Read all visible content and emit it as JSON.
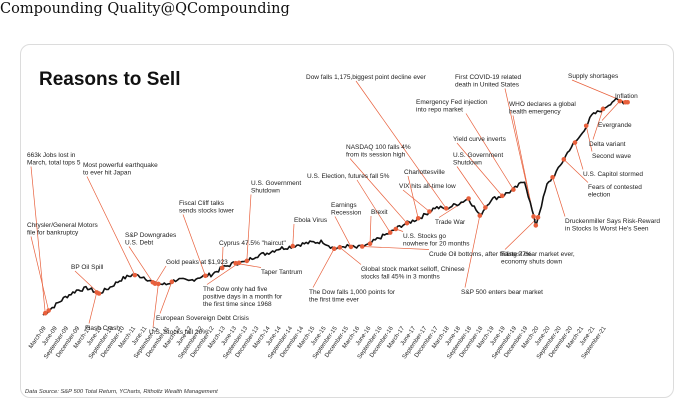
{
  "header": {
    "title": "Compounding Quality@QCompounding"
  },
  "chart_data": {
    "type": "line",
    "title": "Reasons to Sell",
    "source": "Data Source: S&P 500 Total Return, YCharts, Ritholtz Wealth Management",
    "line_color": "#111111",
    "marker_color": "#e8603c",
    "x_ticks": [
      "March-09",
      "June-09",
      "September-09",
      "December-09",
      "March-10",
      "June-10",
      "September-10",
      "December-10",
      "March-11",
      "June-11",
      "September-11",
      "December-11",
      "March-12",
      "June-12",
      "September-12",
      "December-12",
      "March-13",
      "June-13",
      "September-13",
      "December-13",
      "March-14",
      "June-14",
      "September-14",
      "December-14",
      "March-15",
      "June-15",
      "September-15",
      "December-15",
      "March-16",
      "June-16",
      "September-16",
      "December-16",
      "March-17",
      "June-17",
      "September-17",
      "December-17",
      "March-18",
      "June-18",
      "September-18",
      "December-18",
      "March-19",
      "June-19",
      "September-19",
      "December-19",
      "March-20",
      "June-20",
      "September-20",
      "December-20",
      "March-21",
      "June-21",
      "September-21"
    ],
    "series": [
      {
        "points": [
          [
            0,
            100
          ],
          [
            1,
            120
          ],
          [
            2,
            140
          ],
          [
            3,
            155
          ],
          [
            4,
            160
          ],
          [
            5,
            148
          ],
          [
            6,
            162
          ],
          [
            7,
            180
          ],
          [
            8,
            190
          ],
          [
            9,
            185
          ],
          [
            10,
            170
          ],
          [
            11,
            168
          ],
          [
            12,
            180
          ],
          [
            13,
            175
          ],
          [
            14,
            185
          ],
          [
            15,
            190
          ],
          [
            16,
            205
          ],
          [
            17,
            215
          ],
          [
            18,
            218
          ],
          [
            19,
            232
          ],
          [
            20,
            238
          ],
          [
            21,
            248
          ],
          [
            22,
            252
          ],
          [
            23,
            258
          ],
          [
            24,
            262
          ],
          [
            25,
            264
          ],
          [
            26,
            248
          ],
          [
            27,
            254
          ],
          [
            28,
            250
          ],
          [
            29,
            256
          ],
          [
            30,
            272
          ],
          [
            31,
            284
          ],
          [
            32,
            300
          ],
          [
            33,
            310
          ],
          [
            34,
            322
          ],
          [
            35,
            340
          ],
          [
            36,
            338
          ],
          [
            37,
            348
          ],
          [
            38,
            360
          ],
          [
            39,
            322
          ],
          [
            40,
            358
          ],
          [
            41,
            366
          ],
          [
            42,
            380
          ],
          [
            43,
            400
          ],
          [
            44,
            300
          ],
          [
            45,
            390
          ],
          [
            46,
            425
          ],
          [
            47,
            470
          ],
          [
            48,
            500
          ],
          [
            49,
            545
          ],
          [
            50,
            560
          ],
          [
            51,
            580
          ],
          [
            52,
            575
          ]
        ]
      }
    ],
    "annotations": [
      {
        "text": [
          "663k Jobs lost in",
          "March, total tops 5"
        ],
        "x": 0.2
      },
      {
        "text": [
          "Chrysler/General Motors",
          "file for bankruptcy"
        ],
        "x": 0.5
      },
      {
        "text": [
          "Most powerful earthquake",
          "to ever hit Japan"
        ],
        "x": 8.2
      },
      {
        "text": [
          "BP Oil Spill"
        ],
        "x": 5.0
      },
      {
        "text": [
          "Flash Crash"
        ],
        "x": 4.8
      },
      {
        "text": [
          "S&P Downgrades",
          "U.S. Debt"
        ],
        "x": 9.8
      },
      {
        "text": [
          "Fiscal Cliff talks",
          "sends stocks lower"
        ],
        "x": 14.5
      },
      {
        "text": [
          "Gold peaks at $1,923"
        ],
        "x": 10.0
      },
      {
        "text": [
          "U.S. Stocks fall 20%"
        ],
        "x": 10.3
      },
      {
        "text": [
          "European Sovereign Debt Crisis"
        ],
        "x": 11.5
      },
      {
        "text": [
          "Cyprus 47.5% \"haircut\""
        ],
        "x": 16.0
      },
      {
        "text": [
          "U.S. Government",
          "Shutdown"
        ],
        "x": 18.2
      },
      {
        "text": [
          "The Dow only had five",
          "positive days in a month for",
          "the first time since 1968"
        ],
        "x": 17.5
      },
      {
        "text": [
          "Taper Tantrum"
        ],
        "x": 17.2
      },
      {
        "text": [
          "Ebola Virus"
        ],
        "x": 22.3
      },
      {
        "text": [
          "The Dow falls 1,000 points for",
          "the first time ever"
        ],
        "x": 26.0
      },
      {
        "text": [
          "Global stock market selloff, Chinese",
          "stocks fall 45% in 3 months"
        ],
        "x": 26.5
      },
      {
        "text": [
          "Earnings",
          "Recession"
        ],
        "x": 27.5
      },
      {
        "text": [
          "Brexit"
        ],
        "x": 29.2
      },
      {
        "text": [
          "U.S. Election, futures fall 5%"
        ],
        "x": 31.0
      },
      {
        "text": [
          "NASDAQ 100 falls 4%",
          "from its  session high"
        ],
        "x": 32.5
      },
      {
        "text": [
          "Charlottesville"
        ],
        "x": 33.5
      },
      {
        "text": [
          "VIX hits all-time low"
        ],
        "x": 34.5
      },
      {
        "text": [
          "Dow falls 1,175,biggest point decline ever"
        ],
        "x": 36.0
      },
      {
        "text": [
          "U.S. Stocks go",
          "nowhere for 20 months"
        ],
        "x": 31.5
      },
      {
        "text": [
          "Crude Oil bottoms, after falling 77%"
        ],
        "x": 28.5
      },
      {
        "text": [
          "Emergency Fed injection",
          "into repo market"
        ],
        "x": 42.0
      },
      {
        "text": [
          "Trade War"
        ],
        "x": 38.0
      },
      {
        "text": [
          "Yield curve inverts"
        ],
        "x": 41.0
      },
      {
        "text": [
          "U.S. Government",
          "Shutdown"
        ],
        "x": 39.5
      },
      {
        "text": [
          "S&P 500 enters bear market"
        ],
        "x": 39.0
      },
      {
        "text": [
          "First COVID-19 related",
          "death in United States"
        ],
        "x": 44.0
      },
      {
        "text": [
          "WHO declares a global",
          "health emergency"
        ],
        "x": 43.8
      },
      {
        "text": [
          "Fastest bear market ever,",
          "economy shuts down"
        ],
        "x": 44.2
      },
      {
        "text": [
          "Supply shortages"
        ],
        "x": 52.0
      },
      {
        "text": [
          "Inflation"
        ],
        "x": 52.2
      },
      {
        "text": [
          "Evergrande"
        ],
        "x": 51.5
      },
      {
        "text": [
          "Delta variant"
        ],
        "x": 50.0
      },
      {
        "text": [
          "Second wave"
        ],
        "x": 48.5
      },
      {
        "text": [
          "U.S. Capitol stormed"
        ],
        "x": 47.5
      },
      {
        "text": [
          "Fears of contested",
          "election"
        ],
        "x": 46.5
      },
      {
        "text": [
          "Druckenmiller Says Risk-Reward",
          "in Stocks Is Worst He's Seen"
        ],
        "x": 45.5
      }
    ]
  }
}
